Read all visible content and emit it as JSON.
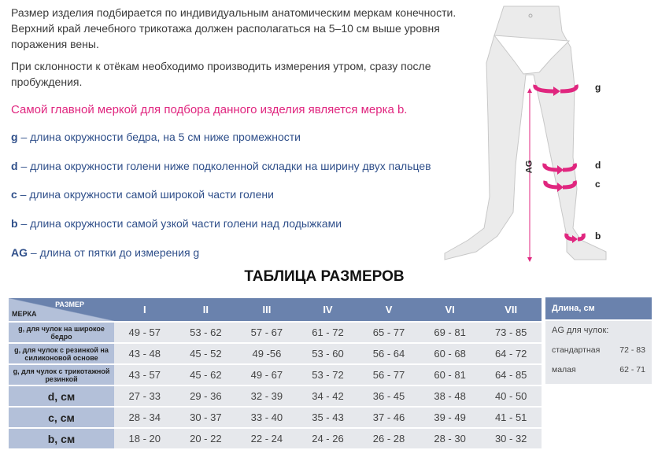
{
  "intro": {
    "p1": "Размер изделия подбирается по индивидуальным анатомическим меркам конечности. Верхний край лечебного трикотажа должен располагаться на 5–10 см выше уровня поражения вены.",
    "p2": "При склонности к отёкам необходимо производить измерения утром, сразу после пробуждения.",
    "highlight": "Самой главной меркой для подбора данного изделия является мерка b."
  },
  "definitions": [
    {
      "key": "g",
      "text": " – длина окружности бедра, на 5 см ниже промежности"
    },
    {
      "key": "d",
      "text": " – длина окружности голени ниже подколенной складки на ширину двух пальцев"
    },
    {
      "key": "c",
      "text": " – длина окружности самой широкой части голени"
    },
    {
      "key": "b",
      "text": " – длина окружности самой узкой части голени над лодыжками"
    },
    {
      "key": "AG",
      "text": " – длина от пятки до измерения g"
    }
  ],
  "figure": {
    "labels": [
      "g",
      "d",
      "c",
      "b"
    ],
    "ag": "AG",
    "accent": "#e0267f"
  },
  "table": {
    "title": "ТАБЛИЦА РАЗМЕРОВ",
    "corner_top": "РАЗМЕР",
    "corner_bottom": "МЕРКА",
    "sizes": [
      "I",
      "II",
      "III",
      "IV",
      "V",
      "VI",
      "VII"
    ],
    "rows": [
      {
        "label": "g, для чулок на широкое бедро",
        "small": true,
        "values": [
          "49 - 57",
          "53 - 62",
          "57 - 67",
          "61 - 72",
          "65 - 77",
          "69 - 81",
          "73 - 85"
        ]
      },
      {
        "label": "g, для чулок с  резинкой на силиконовой основе",
        "small": true,
        "values": [
          "43 - 48",
          "45 - 52",
          "49 -56",
          "53 - 60",
          "56 - 64",
          "60 - 68",
          "64 - 72"
        ]
      },
      {
        "label": "g, для чулок с трикотажной резинкой",
        "small": true,
        "values": [
          "43 - 57",
          "45 - 62",
          "49 - 67",
          "53 - 72",
          "56 - 77",
          "60 - 81",
          "64 - 85"
        ]
      },
      {
        "label": "d, см",
        "values": [
          "27 - 33",
          "29 - 36",
          "32 - 39",
          "34 - 42",
          "36 - 45",
          "38 - 48",
          "40 - 50"
        ]
      },
      {
        "label": "c, см",
        "values": [
          "28 - 34",
          "30 - 37",
          "33 - 40",
          "35 - 43",
          "37 - 46",
          "39 - 49",
          "41 - 51"
        ]
      },
      {
        "label": "b, см",
        "values": [
          "18 - 20",
          "20 - 22",
          "22 - 24",
          "24 - 26",
          "26 - 28",
          "28 - 30",
          "30 - 32"
        ]
      }
    ],
    "header_color": "#6a82ad",
    "label_color": "#b3c0d9"
  },
  "length": {
    "header": "Длина, см",
    "subtitle": "AG для чулок:",
    "rows": [
      {
        "name": "стандартная",
        "value": "72 - 83"
      },
      {
        "name": "малая",
        "value": "62 - 71"
      }
    ]
  }
}
